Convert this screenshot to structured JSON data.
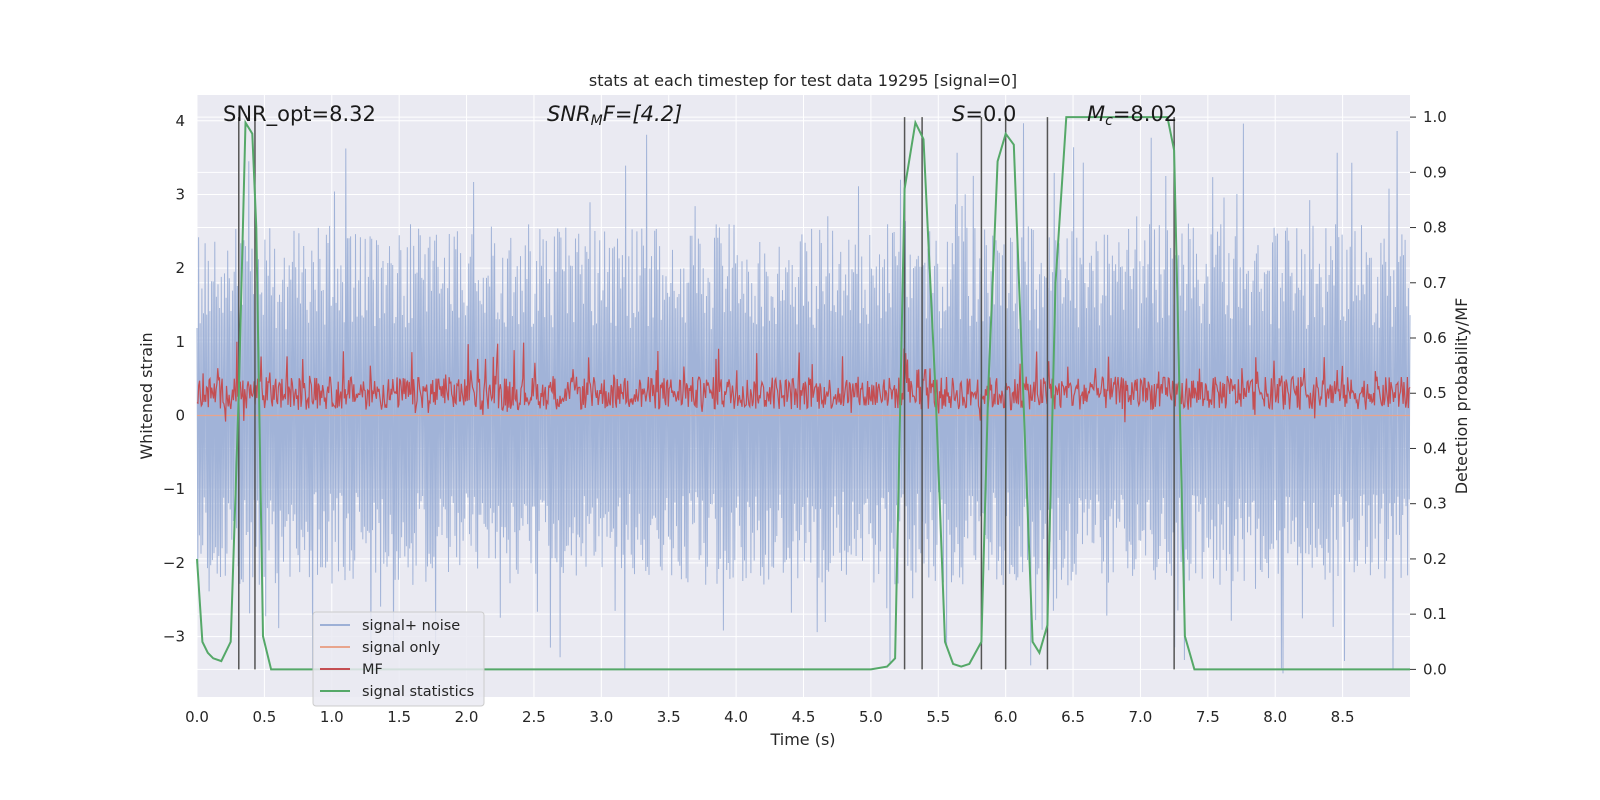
{
  "chart_data": {
    "type": "line",
    "title": "stats at each timestep for test data 19295 [signal=0]",
    "xlabel": "Time (s)",
    "ylabel_left": "Whitened strain",
    "ylabel_right": "Detection probability/MF",
    "xlim": [
      0,
      9.0
    ],
    "ylim_left": [
      -3.82,
      4.35
    ],
    "ylim_right": [
      -0.05,
      1.04
    ],
    "x_ticks": [
      "0.0",
      "0.5",
      "1.0",
      "1.5",
      "2.0",
      "2.5",
      "3.0",
      "3.5",
      "4.0",
      "4.5",
      "5.0",
      "5.5",
      "6.0",
      "6.5",
      "7.0",
      "7.5",
      "8.0",
      "8.5"
    ],
    "y_left_ticks": [
      "4",
      "3",
      "2",
      "1",
      "0",
      "−1",
      "−2",
      "−3"
    ],
    "y_right_ticks": [
      "1.0",
      "0.9",
      "0.8",
      "0.7",
      "0.6",
      "0.5",
      "0.4",
      "0.3",
      "0.2",
      "0.1",
      "0.0"
    ],
    "grid": true,
    "background": "#eaeaf2",
    "annotations": {
      "snr_opt": "SNR_opt=8.32",
      "snr_mf_sym": "SNR",
      "snr_mf_sub": "M",
      "snr_mf_rest": "F=[4.2]",
      "s_sym": "S",
      "s_rest": "=0.0",
      "mc_sym": "M",
      "mc_sub": "c",
      "mc_rest": "=8.02"
    },
    "series": [
      {
        "name": "signal+ noise",
        "color": "#9db0d6",
        "axis": "left",
        "envelope": {
          "max": 2.6,
          "min": -2.3,
          "peak_max": 4.0,
          "peak_min": -3.5
        }
      },
      {
        "name": "signal only",
        "color": "#e8a48c",
        "axis": "left",
        "values_y": 0
      },
      {
        "name": "MF",
        "color": "#c44e52",
        "axis": "right",
        "envelope": {
          "center": 0.5,
          "max": 0.6,
          "min": 0.45
        }
      },
      {
        "name": "signal statistics",
        "color": "#55a868",
        "axis": "right",
        "x": [
          0.0,
          0.04,
          0.08,
          0.12,
          0.18,
          0.25,
          0.31,
          0.36,
          0.41,
          0.44,
          0.49,
          0.55,
          0.65,
          1.0,
          2.0,
          3.0,
          4.0,
          5.0,
          5.12,
          5.18,
          5.25,
          5.33,
          5.39,
          5.48,
          5.55,
          5.61,
          5.67,
          5.73,
          5.82,
          5.87,
          5.94,
          6.0,
          6.06,
          6.13,
          6.2,
          6.25,
          6.31,
          6.37,
          6.45,
          6.55,
          7.0,
          7.15,
          7.2,
          7.25,
          7.33,
          7.4,
          7.5,
          8.0,
          8.5,
          9.0
        ],
        "y": [
          0.2,
          0.05,
          0.03,
          0.02,
          0.015,
          0.05,
          0.5,
          0.99,
          0.97,
          0.8,
          0.06,
          0.0,
          0.0,
          0.0,
          0.0,
          0.0,
          0.0,
          0.0,
          0.005,
          0.02,
          0.87,
          0.99,
          0.96,
          0.5,
          0.05,
          0.01,
          0.005,
          0.01,
          0.05,
          0.5,
          0.92,
          0.97,
          0.95,
          0.5,
          0.05,
          0.03,
          0.08,
          0.7,
          1.0,
          1.0,
          1.0,
          1.0,
          1.0,
          0.94,
          0.06,
          0.0,
          0.0,
          0.0,
          0.0,
          0.0
        ]
      },
      {
        "name": "vertical markers",
        "color": "#555555",
        "x": [
          0.31,
          0.43,
          5.25,
          5.38,
          5.82,
          6.0,
          6.31,
          7.25
        ]
      }
    ],
    "legend": {
      "location": "lower-left",
      "entries": [
        "signal+ noise",
        "signal only",
        "MF",
        "signal statistics"
      ]
    }
  }
}
